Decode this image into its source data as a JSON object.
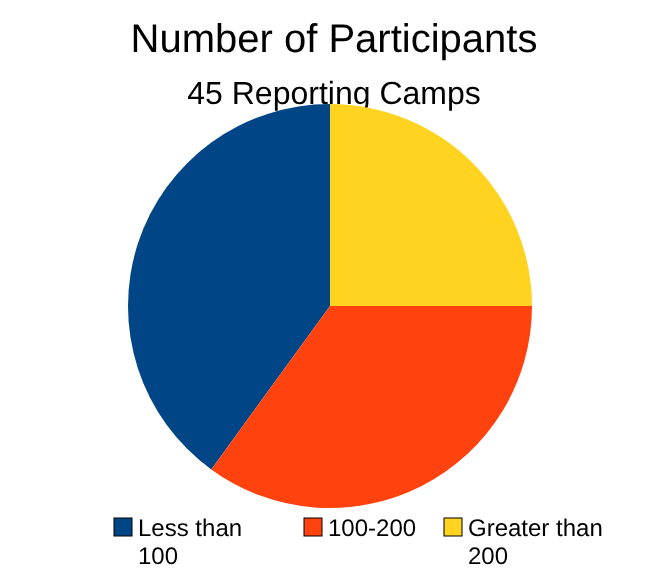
{
  "chart_data": {
    "type": "pie",
    "title": "Number of Participants",
    "subtitle": "45 Reporting Camps",
    "categories": [
      "Less than 100",
      "100-200",
      "Greater than 200"
    ],
    "values": [
      40,
      35,
      25
    ],
    "colors": [
      "#004586",
      "#ff420e",
      "#ffd320"
    ],
    "legend": "bottom"
  }
}
